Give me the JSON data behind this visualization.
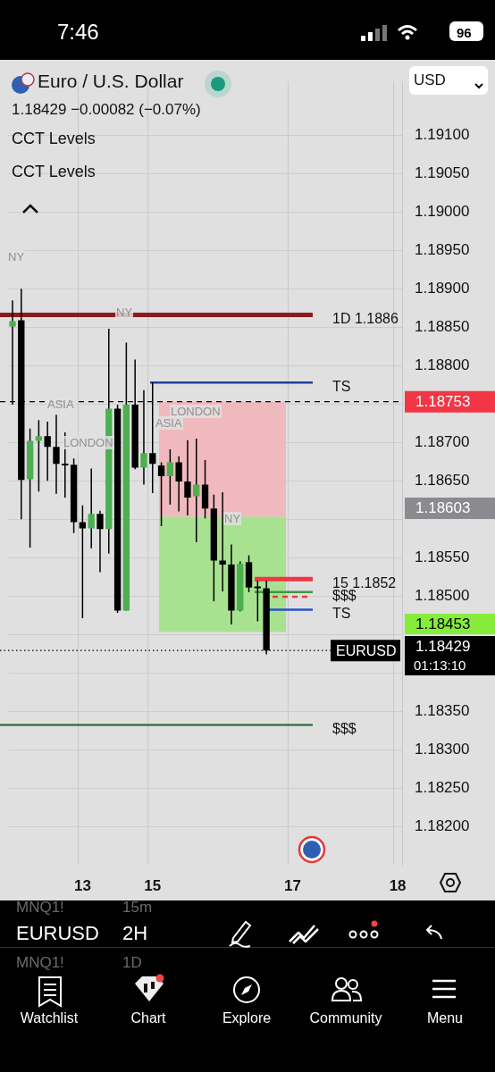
{
  "chart_data": {
    "type": "candlestick",
    "title": "Euro / U.S. Dollar",
    "subtitle": "1.18429  −0.00082 (−0.07%)",
    "colors": [
      "#4caf50",
      "#000000",
      "#4caf50",
      "#4caf50",
      "#000000",
      "#000000",
      "#000000",
      "#000000",
      "#000000",
      "#4caf50",
      "#000000",
      "#4caf50",
      "#000000",
      "#4caf50",
      "#000000",
      "#4caf50",
      "#000000",
      "#000000",
      "#4caf50",
      "#000000",
      "#000000",
      "#4caf50",
      "#000000",
      "#000000",
      "#000000",
      "#000000",
      "#4caf50",
      "#000000",
      "#000000",
      "#000000",
      null,
      null,
      null,
      null,
      null,
      null,
      null,
      null,
      null,
      null,
      null,
      null,
      null,
      null,
      null
    ],
    "categories": [
      null,
      null,
      null,
      null,
      null,
      null,
      null,
      null,
      "13",
      null,
      null,
      null,
      null,
      null,
      null,
      null,
      "15",
      null,
      null,
      null,
      null,
      null,
      null,
      null,
      null,
      null,
      null,
      null,
      null,
      null,
      null,
      null,
      "17",
      null,
      null,
      null,
      null,
      null,
      null,
      null,
      null,
      null,
      null,
      null,
      "18"
    ],
    "ohlc": [
      [
        1.18851,
        1.18885,
        1.18749,
        1.18858
      ],
      [
        1.18859,
        1.189,
        1.186,
        1.18651
      ],
      [
        1.18652,
        1.18718,
        1.18563,
        1.18702
      ],
      [
        1.18702,
        1.18729,
        1.18636,
        1.18708
      ],
      [
        1.18708,
        1.18727,
        1.1865,
        1.18694
      ],
      [
        1.18694,
        1.18736,
        1.18633,
        1.18672
      ],
      [
        1.18672,
        1.18713,
        1.18628,
        1.1867
      ],
      [
        1.18671,
        1.18679,
        1.18582,
        1.18596
      ],
      [
        1.18596,
        1.18618,
        1.18471,
        1.18588
      ],
      [
        1.18588,
        1.18666,
        1.18562,
        1.18607
      ],
      [
        1.18607,
        1.18611,
        1.18531,
        1.18587
      ],
      [
        1.18587,
        1.18848,
        1.18555,
        1.18744
      ],
      [
        1.18744,
        1.18749,
        1.18478,
        1.18481
      ],
      [
        1.18481,
        1.1883,
        1.18481,
        1.18749
      ],
      [
        1.18749,
        1.18808,
        1.18665,
        1.18667
      ],
      [
        1.18667,
        1.18768,
        1.18645,
        1.18686
      ],
      [
        1.18686,
        1.18778,
        1.18634,
        1.18672
      ],
      [
        1.1867,
        1.18674,
        1.18591,
        1.18656
      ],
      [
        1.18656,
        1.18691,
        1.18619,
        1.18674
      ],
      [
        1.18674,
        1.18682,
        1.1861,
        1.18649
      ],
      [
        1.18649,
        1.18703,
        1.18605,
        1.18628
      ],
      [
        1.1863,
        1.18705,
        1.1857,
        1.18645
      ],
      [
        1.18645,
        1.18677,
        1.18601,
        1.18614
      ],
      [
        1.18614,
        1.18632,
        1.18493,
        1.18546
      ],
      [
        1.18546,
        1.18635,
        1.18506,
        1.18541
      ],
      [
        1.18541,
        1.18567,
        1.18463,
        1.18481
      ],
      [
        1.18481,
        1.18545,
        1.1848,
        1.18542
      ],
      [
        1.18544,
        1.18553,
        1.18505,
        1.18511
      ],
      [
        1.18511,
        1.1852,
        1.18467,
        1.1851
      ],
      [
        1.1851,
        1.1852,
        1.18424,
        1.18429
      ],
      null,
      null,
      null,
      null,
      null,
      null,
      null,
      null,
      null,
      null,
      null,
      null,
      null,
      null,
      null
    ],
    "ylim": [
      1.1815,
      1.1917
    ],
    "yticks": [
      {
        "value": 1.191,
        "label": "1.19100"
      },
      {
        "value": 1.1905,
        "label": "1.19050"
      },
      {
        "value": 1.19,
        "label": "1.19000"
      },
      {
        "value": 1.1895,
        "label": "1.18950"
      },
      {
        "value": 1.189,
        "label": "1.18900"
      },
      {
        "value": 1.1885,
        "label": "1.18850"
      },
      {
        "value": 1.188,
        "label": "1.18800"
      },
      {
        "value": 1.1875,
        "label": null
      },
      {
        "value": 1.187,
        "label": "1.18700"
      },
      {
        "value": 1.1865,
        "label": "1.18650"
      },
      {
        "value": 1.186,
        "label": null
      },
      {
        "value": 1.1855,
        "label": "1.18550"
      },
      {
        "value": 1.185,
        "label": "1.18500"
      },
      {
        "value": 1.1845,
        "label": null
      },
      {
        "value": 1.184,
        "label": null
      },
      {
        "value": 1.1835,
        "label": "1.18350"
      },
      {
        "value": 1.183,
        "label": "1.18300"
      },
      {
        "value": 1.1825,
        "label": "1.18250"
      },
      {
        "value": 1.182,
        "label": "1.18200"
      }
    ],
    "grid": true,
    "bands": [
      {
        "axis": "y",
        "from": 1.18603,
        "to": 1.18753,
        "color": "#f0b9bd"
      },
      {
        "axis": "y",
        "from": 1.18453,
        "to": 1.18603,
        "color": "#a8e291"
      }
    ],
    "ref_lines": [
      {
        "axis": "y",
        "value": 1.18866,
        "label": "1D 1.1886",
        "color": "#8b1c1c"
      },
      {
        "axis": "y",
        "value": 1.18778,
        "label": "TS",
        "color": "#1f3f9e"
      },
      {
        "axis": "y",
        "value": 1.18753,
        "label": "1.18753",
        "color": "#000000",
        "line_style": "dashed"
      },
      {
        "axis": "y",
        "value": 1.18522,
        "label": "15 1.1852",
        "color": "#f23645"
      },
      {
        "axis": "y",
        "value": 1.18505,
        "label": "$$$",
        "color": "#3a9a44"
      },
      {
        "axis": "y",
        "value": 1.18499,
        "color": "#f23645",
        "line_style": "dashed"
      },
      {
        "axis": "y",
        "value": 1.18482,
        "label": "TS",
        "color": "#2750c8"
      },
      {
        "axis": "y",
        "value": 1.18332,
        "label": "$$$",
        "color": "#1f5a28"
      },
      {
        "axis": "y",
        "value": 1.18429,
        "label": "EURUSD",
        "color": "#000000",
        "line_style": "dotted"
      }
    ],
    "annotations": [
      "CCT Levels",
      "CCT Levels",
      "NY",
      "NY",
      "ASIA",
      "LONDON",
      "LONDON",
      "ASIA",
      "NY",
      "USD",
      "1.18603",
      "1.18453",
      "1.18429",
      "01:13:10",
      "7:46",
      "96",
      "EURUSD",
      "2H",
      "MNQ1!",
      "15m",
      "MNQ1!",
      "1D",
      "Watchlist",
      "Chart",
      "Explore",
      "Community",
      "Menu"
    ]
  }
}
